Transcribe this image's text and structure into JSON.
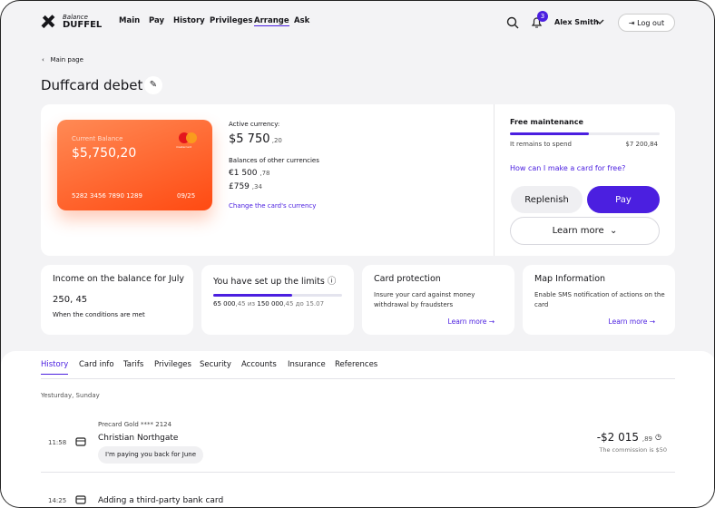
{
  "header": {
    "logo_top": "Balance",
    "logo_bottom": "DUFFEL",
    "nav": [
      "Main",
      "Pay",
      "History",
      "Privileges",
      "Arrange",
      "Ask"
    ],
    "notifications": "3",
    "user": "Alex Smith",
    "logout": "Log out"
  },
  "breadcrumb": "Main page",
  "title": "Duffcard debet",
  "card": {
    "label": "Current Balance",
    "balance": "$5,750,20",
    "brand": "mastercard",
    "number": "5282 3456 7890 1289",
    "expiry": "09/25"
  },
  "currency": {
    "active_label": "Active currency:",
    "main": "$5 750",
    "main_cents": ",20",
    "other_label": "Balances of other currencies",
    "others": [
      {
        "amount": "€1 500",
        "cents": ",78"
      },
      {
        "amount": "£759",
        "cents": ",34"
      }
    ],
    "change_link": "Change the card's currency"
  },
  "maintenance": {
    "title": "Free maintenance",
    "remains": "It remains to spend",
    "amount": "$7 200,84",
    "link": "How can I make a card for free?"
  },
  "buttons": {
    "replenish": "Replenish",
    "pay": "Pay",
    "learn_more": "Learn more"
  },
  "tiles": [
    {
      "title": "Income on the balance for July",
      "value": "250, 45",
      "note": "When the conditions are met"
    },
    {
      "title": "You have set up the limits",
      "parts": [
        "65 000",
        ",45 из ",
        "150 000",
        ",45 до 15.07"
      ]
    },
    {
      "title": "Card protection",
      "text": "Insure your card against money withdrawal by fraudsters",
      "link": "Learn more"
    },
    {
      "title": "Map Information",
      "text": "Enable SMS notification of actions on the card",
      "link": "Learn more"
    }
  ],
  "tabs": [
    "History",
    "Card info",
    "Tarifs",
    "Privileges",
    "Security",
    "Accounts",
    "Insurance",
    "References"
  ],
  "date": "Yesturday, Sunday",
  "transactions": [
    {
      "time": "11:58",
      "source": "Precard Gold **** 2124",
      "name": "Christian Northgate",
      "note": "I'm paying you back for June",
      "amount": "-$2 015",
      "cents": ",89",
      "commission": "The commission is $50"
    },
    {
      "time": "14:25",
      "name": "Adding a third-party bank card"
    }
  ]
}
